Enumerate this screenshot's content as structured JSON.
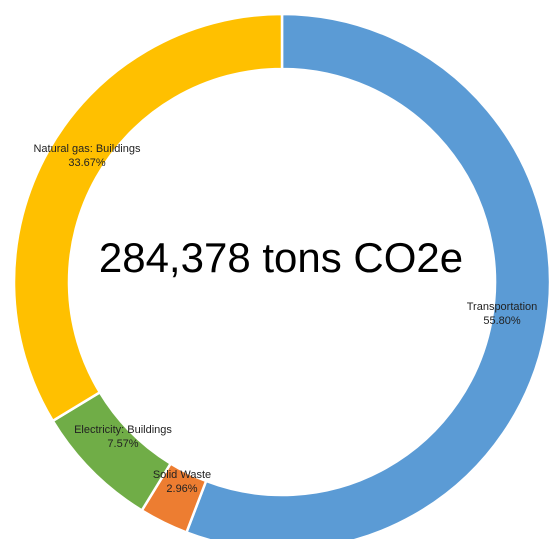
{
  "chart_data": {
    "type": "pie",
    "variant": "donut",
    "center_text": "284,378 tons CO2e",
    "slices": [
      {
        "label": "Transportation",
        "value_label": "55.80%",
        "value": 55.8,
        "color": "#5b9bd5"
      },
      {
        "label": "Solid Waste",
        "value_label": "2.96%",
        "value": 2.96,
        "color": "#ed7d31"
      },
      {
        "label": "Electricity: Buildings",
        "value_label": "7.57%",
        "value": 7.57,
        "color": "#70ad47"
      },
      {
        "label": "Natural gas: Buildings",
        "value_label": "33.67%",
        "value": 33.67,
        "color": "#ffc000"
      }
    ]
  }
}
